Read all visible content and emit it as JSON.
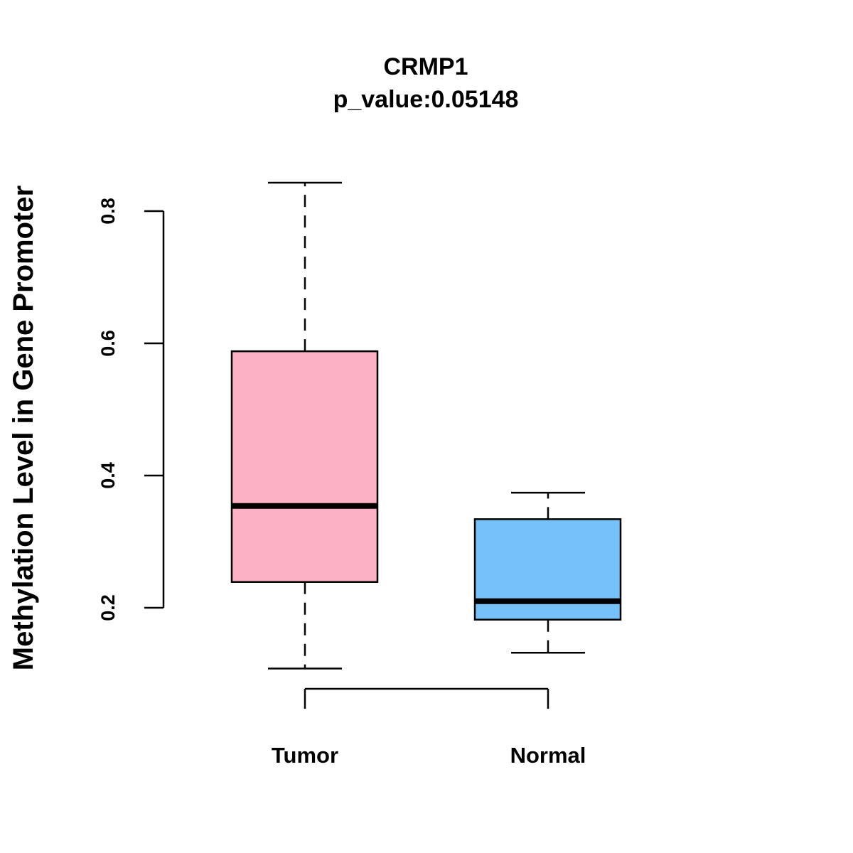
{
  "chart_data": {
    "type": "boxplot",
    "title": "CRMP1",
    "subtitle": "p_value:0.05148",
    "xlabel": "",
    "ylabel": "Methylation Level in Gene Promoter",
    "ylim": [
      0.2,
      0.8
    ],
    "yticks": [
      0.2,
      0.4,
      0.6,
      0.8
    ],
    "ytick_labels": [
      "0.2",
      "0.4",
      "0.6",
      "0.8"
    ],
    "categories": [
      "Tumor",
      "Normal"
    ],
    "grid": false,
    "series": [
      {
        "name": "Tumor",
        "min": 0.108,
        "q1": 0.239,
        "median": 0.354,
        "q3": 0.588,
        "max": 0.843,
        "color": "#FCB1C4"
      },
      {
        "name": "Normal",
        "min": 0.132,
        "q1": 0.182,
        "median": 0.21,
        "q3": 0.334,
        "max": 0.374,
        "color": "#75C1F8"
      }
    ]
  }
}
